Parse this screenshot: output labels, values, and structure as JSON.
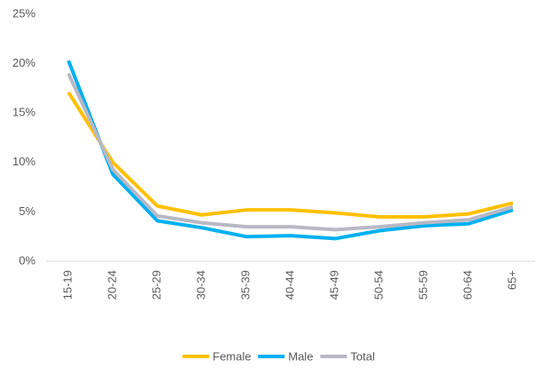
{
  "chart_data": {
    "type": "line",
    "categories": [
      "15-19",
      "20-24",
      "25-29",
      "30-34",
      "35-39",
      "40-44",
      "45-49",
      "50-54",
      "55-59",
      "60-64",
      "65+"
    ],
    "series": [
      {
        "name": "Female",
        "color": "#ffc000",
        "values": [
          17.1,
          10.0,
          5.6,
          4.7,
          5.2,
          5.2,
          4.9,
          4.5,
          4.5,
          4.8,
          5.9
        ]
      },
      {
        "name": "Male",
        "color": "#00b0f0",
        "values": [
          20.3,
          8.8,
          4.1,
          3.4,
          2.5,
          2.6,
          2.3,
          3.1,
          3.6,
          3.8,
          5.2
        ]
      },
      {
        "name": "Total",
        "color": "#b8b8c6",
        "values": [
          19.0,
          9.3,
          4.6,
          3.9,
          3.5,
          3.5,
          3.2,
          3.5,
          3.9,
          4.2,
          5.5
        ]
      }
    ],
    "ylim": [
      0,
      25
    ],
    "yticks": [
      {
        "value": 0,
        "label": "0%"
      },
      {
        "value": 5,
        "label": "5%"
      },
      {
        "value": 10,
        "label": "10%"
      },
      {
        "value": 15,
        "label": "15%"
      },
      {
        "value": 20,
        "label": "20%"
      },
      {
        "value": 25,
        "label": "25%"
      }
    ],
    "grid": false,
    "legend": "bottom"
  }
}
